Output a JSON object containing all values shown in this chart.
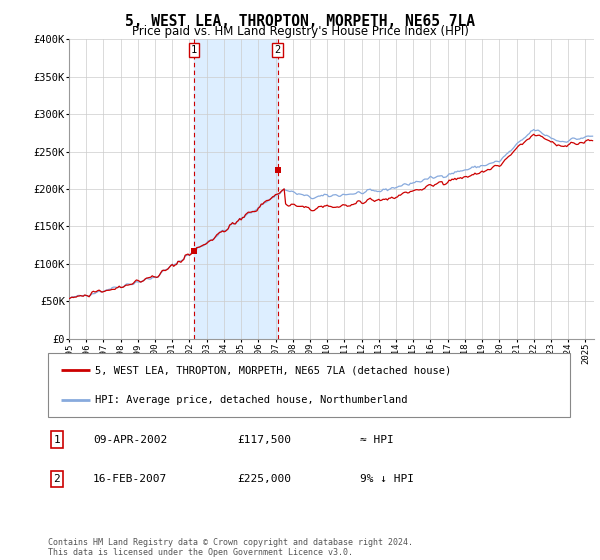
{
  "title": "5, WEST LEA, THROPTON, MORPETH, NE65 7LA",
  "subtitle": "Price paid vs. HM Land Registry's House Price Index (HPI)",
  "title_fontsize": 10.5,
  "subtitle_fontsize": 8.5,
  "legend_line1": "5, WEST LEA, THROPTON, MORPETH, NE65 7LA (detached house)",
  "legend_line2": "HPI: Average price, detached house, Northumberland",
  "table_row1": [
    "1",
    "09-APR-2002",
    "£117,500",
    "≈ HPI"
  ],
  "table_row2": [
    "2",
    "16-FEB-2007",
    "£225,000",
    "9% ↓ HPI"
  ],
  "footer": "Contains HM Land Registry data © Crown copyright and database right 2024.\nThis data is licensed under the Open Government Licence v3.0.",
  "red_color": "#cc0000",
  "blue_color": "#88aadd",
  "shaded_color": "#ddeeff",
  "marker1_year": 2002.27,
  "marker2_year": 2007.12,
  "marker1_price": 117500,
  "marker2_price": 225000,
  "ylim": [
    0,
    400000
  ],
  "xlim": [
    1995.0,
    2025.5
  ],
  "yticks": [
    0,
    50000,
    100000,
    150000,
    200000,
    250000,
    300000,
    350000,
    400000
  ],
  "ytick_labels": [
    "£0",
    "£50K",
    "£100K",
    "£150K",
    "£200K",
    "£250K",
    "£300K",
    "£350K",
    "£400K"
  ],
  "xtick_years": [
    1995,
    1996,
    1997,
    1998,
    1999,
    2000,
    2001,
    2002,
    2003,
    2004,
    2005,
    2006,
    2007,
    2008,
    2009,
    2010,
    2011,
    2012,
    2013,
    2014,
    2015,
    2016,
    2017,
    2018,
    2019,
    2020,
    2021,
    2022,
    2023,
    2024,
    2025
  ]
}
